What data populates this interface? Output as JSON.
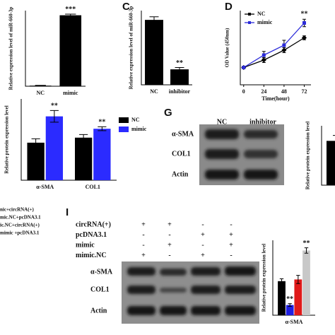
{
  "chart_data": [
    {
      "type": "bar",
      "ylabel": "Relative expression level of miR-660-3p",
      "categories": [
        "NC",
        "mimic"
      ],
      "values": [
        1,
        122
      ],
      "errors": [
        0.5,
        2
      ],
      "color": "#000000",
      "ylim": [
        0,
        130
      ],
      "annotations": [
        "***"
      ]
    },
    {
      "type": "bar",
      "ylabel": "Relative expression level of miR-660-3p",
      "categories": [
        "NC",
        "inhibitor"
      ],
      "values": [
        1.05,
        0.25
      ],
      "errors": [
        0.05,
        0.03
      ],
      "color": "#000000",
      "ylim": [
        0,
        1.2
      ],
      "annotations": [
        "**"
      ]
    },
    {
      "type": "line",
      "ylabel": "OD Value (450nm)",
      "xlabel": "Time(hour)",
      "x": [
        0,
        24,
        48,
        72
      ],
      "xlim": [
        -4,
        80
      ],
      "xticks": [
        0,
        24,
        48,
        72
      ],
      "ylim": [
        0,
        3
      ],
      "series": [
        {
          "name": "NC",
          "color": "#000000",
          "values": [
            0.7,
            1.0,
            1.4,
            1.9
          ],
          "errors": [
            0.03,
            0.1,
            0.1,
            0.08
          ]
        },
        {
          "name": "mimic",
          "color": "#2b2bd9",
          "values": [
            0.7,
            1.2,
            1.6,
            2.5
          ],
          "errors": [
            0.03,
            0.15,
            0.2,
            0.15
          ]
        }
      ],
      "annotations": [
        "**"
      ]
    },
    {
      "type": "bar",
      "ylabel": "Relative protein expression level",
      "categories": [
        "α-SMA",
        "COL1"
      ],
      "ylim": [
        0,
        2.1
      ],
      "series": [
        {
          "name": "NC",
          "color": "#000000",
          "values": [
            0.97,
            1.1
          ],
          "errors": [
            0.1,
            0.08
          ]
        },
        {
          "name": "mimic",
          "color": "#2b2bff",
          "values": [
            1.65,
            1.33
          ],
          "errors": [
            0.15,
            0.05
          ]
        }
      ],
      "annotations": [
        "**",
        "**"
      ]
    },
    {
      "type": "bar",
      "ylabel": "Relative protein expression level",
      "categories": [
        "α-"
      ],
      "values": [
        0.97
      ],
      "errors": [
        0.12
      ],
      "color": "#000000",
      "ylim": [
        0,
        1.3
      ]
    },
    {
      "type": "bar",
      "ylabel": "Relative protein expression level",
      "categories": [
        "α-SMA"
      ],
      "ylim": [
        0,
        2.2
      ],
      "series": [
        {
          "color": "#000000",
          "values": [
            1.0
          ],
          "errors": [
            0.07
          ]
        },
        {
          "color": "#1f1fe0",
          "values": [
            0.3
          ],
          "errors": [
            0.04
          ]
        },
        {
          "color": "#e01a1a",
          "values": [
            1.05
          ],
          "errors": [
            0.12
          ]
        },
        {
          "color": "#c8c8c8",
          "values": [
            1.9
          ],
          "errors": [
            0.08
          ]
        }
      ],
      "annotations": [
        "**",
        "**"
      ]
    }
  ],
  "panel_labels": [
    "C",
    "D",
    "G",
    "I"
  ],
  "blot_g": {
    "columns": [
      "NC",
      "inhibitor"
    ],
    "rows": [
      "α-SMA",
      "COL1",
      "Actin"
    ]
  },
  "blot_i": {
    "conditions": [
      {
        "label": "circRNA(+)",
        "signs": [
          "+",
          "+",
          "-",
          "-"
        ]
      },
      {
        "label": "pcDNA3.1",
        "signs": [
          "-",
          "-",
          "+",
          "+"
        ]
      },
      {
        "label": "mimic",
        "signs": [
          "-",
          "+",
          "-",
          "+"
        ]
      },
      {
        "label": "mimic.NC",
        "signs": [
          "+",
          "-",
          "+",
          "-"
        ]
      }
    ],
    "rows": [
      "α-SMA",
      "COL1",
      "Actin"
    ]
  },
  "group_legend": [
    "nic+circRNA(+)",
    "mic.NC+pcDNA3.1",
    "ic.NC+circRNA(+)",
    "mimic +pcDNA3.1"
  ]
}
